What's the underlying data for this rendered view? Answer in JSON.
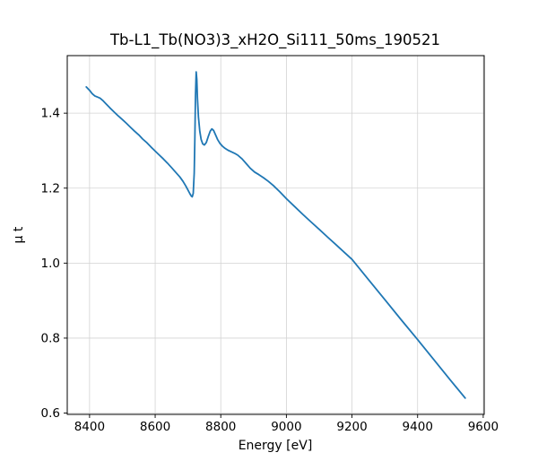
{
  "chart_data": {
    "type": "line",
    "title": "Tb-L1_Tb(NO3)3_xH2O_Si111_50ms_190521",
    "xlabel": "Energy [eV]",
    "ylabel": "μ t",
    "xlim": [
      8332,
      9603
    ],
    "ylim": [
      0.5965,
      1.5535
    ],
    "xticks": [
      8400,
      8600,
      8800,
      9000,
      9200,
      9400,
      9600
    ],
    "xtick_labels": [
      "8400",
      "8600",
      "8800",
      "9000",
      "9200",
      "9400",
      "9600"
    ],
    "yticks": [
      0.6,
      0.8,
      1.0,
      1.2,
      1.4
    ],
    "ytick_labels": [
      "0.6",
      "0.8",
      "1.0",
      "1.2",
      "1.4"
    ],
    "grid": true,
    "legend": "none",
    "line_color": "#1f77b4",
    "series": [
      {
        "name": "mu_t_spectrum",
        "x": [
          8390,
          8400,
          8408,
          8416,
          8424,
          8432,
          8440,
          8450,
          8462,
          8475,
          8487,
          8500,
          8512,
          8525,
          8537,
          8550,
          8562,
          8575,
          8587,
          8600,
          8612,
          8625,
          8637,
          8650,
          8662,
          8675,
          8685,
          8693,
          8700,
          8706,
          8710,
          8713,
          8716,
          8719,
          8721,
          8723,
          8725,
          8727,
          8729,
          8732,
          8736,
          8740,
          8745,
          8750,
          8756,
          8762,
          8768,
          8773,
          8778,
          8784,
          8790,
          8797,
          8805,
          8813,
          8822,
          8832,
          8842,
          8852,
          8865,
          8878,
          8890,
          8903,
          8916,
          8930,
          8945,
          8960,
          8980,
          9000,
          9025,
          9050,
          9075,
          9100,
          9125,
          9150,
          9175,
          9200,
          9250,
          9300,
          9350,
          9400,
          9450,
          9500,
          9545
        ],
        "y": [
          1.47,
          1.461,
          1.452,
          1.446,
          1.443,
          1.44,
          1.434,
          1.425,
          1.414,
          1.403,
          1.393,
          1.383,
          1.373,
          1.362,
          1.352,
          1.342,
          1.331,
          1.321,
          1.31,
          1.299,
          1.289,
          1.278,
          1.267,
          1.255,
          1.243,
          1.23,
          1.218,
          1.206,
          1.195,
          1.185,
          1.179,
          1.177,
          1.186,
          1.24,
          1.33,
          1.445,
          1.51,
          1.49,
          1.44,
          1.39,
          1.352,
          1.33,
          1.318,
          1.315,
          1.322,
          1.338,
          1.352,
          1.358,
          1.354,
          1.342,
          1.33,
          1.32,
          1.312,
          1.306,
          1.301,
          1.297,
          1.293,
          1.288,
          1.278,
          1.265,
          1.253,
          1.243,
          1.236,
          1.228,
          1.218,
          1.207,
          1.19,
          1.172,
          1.151,
          1.13,
          1.11,
          1.09,
          1.07,
          1.05,
          1.03,
          1.01,
          0.956,
          0.903,
          0.849,
          0.796,
          0.742,
          0.688,
          0.64
        ]
      }
    ]
  },
  "colors": {
    "background": "#ffffff",
    "grid": "#d3d3d3",
    "spine": "#000000",
    "line": "#1f77b4"
  }
}
